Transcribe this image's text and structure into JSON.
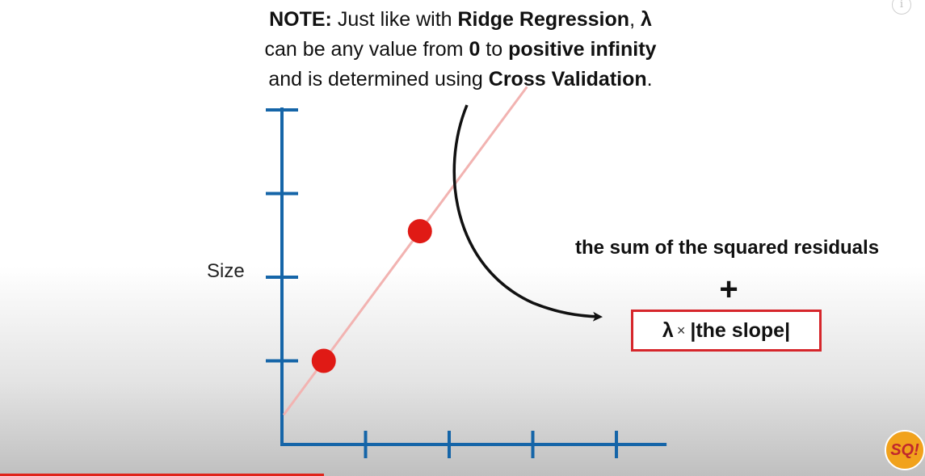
{
  "note": {
    "prefix": "NOTE:",
    "t1": " Just like with ",
    "ridge": "Ridge Regression",
    "t2": ", ",
    "lambda": "λ",
    "t3": "can be any value from ",
    "zero": "0",
    "t4": " to ",
    "pos_inf": "positive infinity",
    "t5": "and is determined using ",
    "cv": "Cross Validation",
    "t6": "."
  },
  "formula": {
    "sum_text": "the sum of the squared residuals",
    "plus": "+",
    "lambda": "λ",
    "times": "×",
    "slope": "|the slope|"
  },
  "chart_data": {
    "type": "scatter",
    "ylabel": "Size",
    "xlabel": "",
    "points": [
      {
        "x": 0.5,
        "y": 1.0
      },
      {
        "x": 1.65,
        "y": 2.55
      }
    ],
    "fit_line": {
      "slope": 1.348,
      "intercept": 0.326
    },
    "xlim": [
      0,
      4.6
    ],
    "ylim": [
      0,
      4
    ],
    "xticks": [
      1,
      2,
      3,
      4
    ],
    "yticks": [
      1,
      2,
      3,
      4
    ],
    "axis_color": "#1565a8",
    "point_color": "#e01a15",
    "line_color": "#f2b3b1"
  },
  "icons": {
    "info": "i",
    "logo": "SQ!"
  },
  "video": {
    "progress": 0.35
  }
}
